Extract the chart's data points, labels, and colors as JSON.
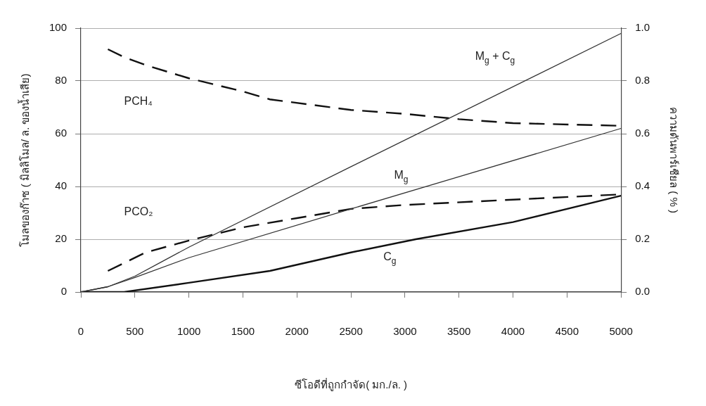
{
  "chart_data": {
    "type": "line",
    "xlabel": "ซีโอดีที่ถูกกำจัด( มก./ล. )",
    "ylabel": "โมลของก๊าซ ( มิลลิโมล/ ล. ของน้ำเสีย)",
    "y2label": "ความดันพาร์เชียล ( % )",
    "xlim": [
      0,
      5000
    ],
    "xticks": [
      0,
      500,
      1000,
      1500,
      2000,
      2500,
      3000,
      3500,
      4000,
      4500,
      5000
    ],
    "ylim": [
      0,
      100
    ],
    "yticks": [
      0,
      20,
      40,
      60,
      80,
      100
    ],
    "y2lim": [
      0,
      1
    ],
    "y2ticks": [
      {
        "value": 0,
        "label": "0.0"
      },
      {
        "value": 0.2,
        "label": "0.2"
      },
      {
        "value": 0.4,
        "label": "0.4"
      },
      {
        "value": 0.6,
        "label": "0.6"
      },
      {
        "value": 0.8,
        "label": "0.8"
      },
      {
        "value": 1,
        "label": "1.0"
      }
    ],
    "grid": "y",
    "legend": false,
    "marker": "none",
    "series": [
      {
        "name": "M$_{g}$ + C$_{g}$",
        "color": "#333333",
        "line_style": "solid",
        "x": [
          0,
          250,
          500,
          750,
          1000,
          2500,
          5000
        ],
        "values": [
          0,
          2,
          6,
          11.5,
          17,
          47.5,
          98
        ]
      },
      {
        "name": "M$_{g}$",
        "color": "#333333",
        "line_style": "solid",
        "x": [
          0,
          250,
          500,
          1000,
          2500,
          5000
        ],
        "values": [
          0,
          2,
          5.5,
          13,
          31.5,
          62
        ]
      },
      {
        "name": "C$_{g}$",
        "color": "#111111",
        "line_style": "solid",
        "x": [
          0,
          400,
          1000,
          1750,
          2500,
          3100,
          4000,
          5000
        ],
        "values": [
          0,
          0,
          3.5,
          8,
          15,
          20,
          26.5,
          36.5
        ]
      },
      {
        "name": "PCH₄",
        "color": "#111111",
        "line_style": "dashed",
        "axis": "y2",
        "x": [
          250,
          400,
          600,
          1000,
          1500,
          1750,
          2500,
          3000,
          3500,
          4000,
          5000
        ],
        "values": [
          0.92,
          0.89,
          0.86,
          0.81,
          0.76,
          0.73,
          0.69,
          0.675,
          0.655,
          0.64,
          0.63
        ]
      },
      {
        "name": "PCO₂",
        "color": "#111111",
        "line_style": "dashed",
        "axis": "y2",
        "x": [
          250,
          400,
          600,
          1000,
          1500,
          2000,
          2500,
          3000,
          4000,
          5000
        ],
        "values": [
          0.08,
          0.11,
          0.15,
          0.195,
          0.245,
          0.28,
          0.315,
          0.33,
          0.35,
          0.37
        ]
      }
    ]
  }
}
